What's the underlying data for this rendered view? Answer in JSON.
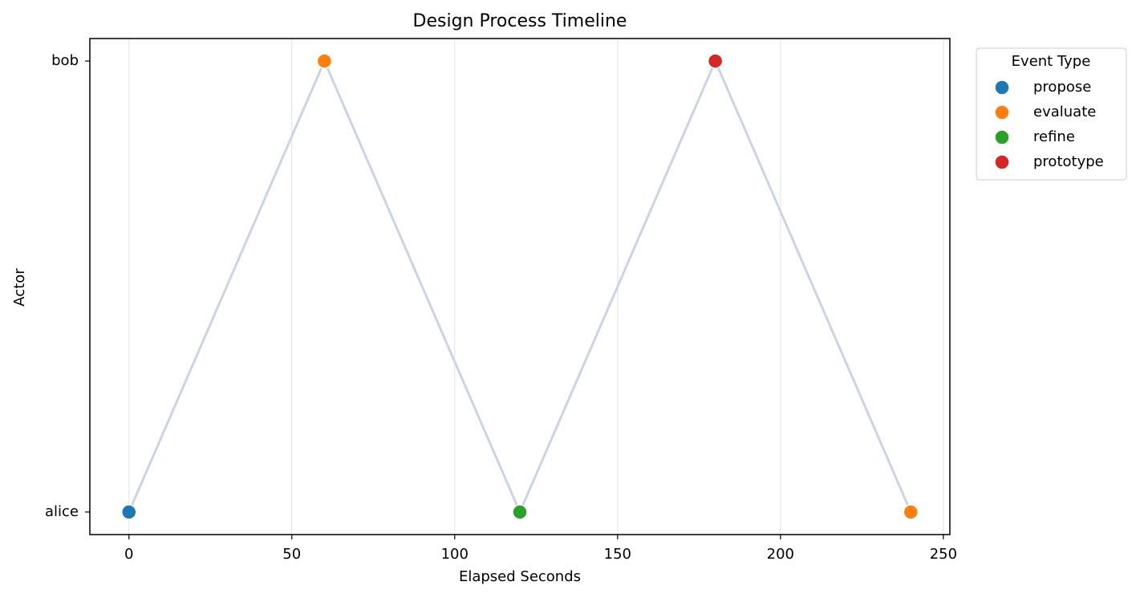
{
  "chart_data": {
    "type": "scatter",
    "title": "Design Process Timeline",
    "x_label": "Elapsed Seconds",
    "y_label": "Actor",
    "x": [
      0,
      60,
      120,
      180,
      240
    ],
    "actors": [
      "alice",
      "bob",
      "alice",
      "bob",
      "alice"
    ],
    "events": [
      "propose",
      "evaluate",
      "refine",
      "prototype",
      "evaluate"
    ],
    "y_categories": [
      "alice",
      "bob"
    ],
    "xlim": [
      -12,
      252
    ],
    "xticks": [
      0,
      50,
      100,
      150,
      200,
      250
    ],
    "grid": true,
    "line_color": "#cbd5e1",
    "legend": {
      "title": "Event Type",
      "position": "outside-upper-right",
      "series": [
        {
          "name": "propose",
          "color": "#1f77b4"
        },
        {
          "name": "evaluate",
          "color": "#ff7f0e"
        },
        {
          "name": "refine",
          "color": "#2ca02c"
        },
        {
          "name": "prototype",
          "color": "#d62728"
        }
      ]
    }
  }
}
